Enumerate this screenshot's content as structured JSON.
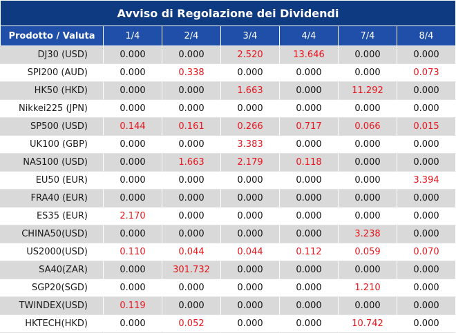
{
  "title": "Avviso di Regolazione dei Dividendi",
  "header": {
    "first_col": "Prodotto / Valuta",
    "dates": [
      "1/4",
      "2/4",
      "3/4",
      "4/4",
      "7/4",
      "8/4"
    ]
  },
  "colors": {
    "title_bg": "#0e3a82",
    "header_bg": "#1f4fa8",
    "shaded_row": "#d9d9d9",
    "highlight_text": "#e8141b"
  },
  "rows": [
    {
      "product": "DJ30 (USD)",
      "values": [
        "0.000",
        "0.000",
        "2.520",
        "13.646",
        "0.000",
        "0.000"
      ]
    },
    {
      "product": "SPI200 (AUD)",
      "values": [
        "0.000",
        "0.338",
        "0.000",
        "0.000",
        "0.000",
        "0.073"
      ]
    },
    {
      "product": "HK50 (HKD)",
      "values": [
        "0.000",
        "0.000",
        "1.663",
        "0.000",
        "11.292",
        "0.000"
      ]
    },
    {
      "product": "Nikkei225 (JPN)",
      "values": [
        "0.000",
        "0.000",
        "0.000",
        "0.000",
        "0.000",
        "0.000"
      ]
    },
    {
      "product": "SP500 (USD)",
      "values": [
        "0.144",
        "0.161",
        "0.266",
        "0.717",
        "0.066",
        "0.015"
      ]
    },
    {
      "product": "UK100 (GBP)",
      "values": [
        "0.000",
        "0.000",
        "3.383",
        "0.000",
        "0.000",
        "0.000"
      ]
    },
    {
      "product": "NAS100 (USD)",
      "values": [
        "0.000",
        "1.663",
        "2.179",
        "0.118",
        "0.000",
        "0.000"
      ]
    },
    {
      "product": "EU50 (EUR)",
      "values": [
        "0.000",
        "0.000",
        "0.000",
        "0.000",
        "0.000",
        "3.394"
      ]
    },
    {
      "product": "FRA40 (EUR)",
      "values": [
        "0.000",
        "0.000",
        "0.000",
        "0.000",
        "0.000",
        "0.000"
      ]
    },
    {
      "product": "ES35 (EUR)",
      "values": [
        "2.170",
        "0.000",
        "0.000",
        "0.000",
        "0.000",
        "0.000"
      ]
    },
    {
      "product": "CHINA50(USD)",
      "values": [
        "0.000",
        "0.000",
        "0.000",
        "0.000",
        "3.238",
        "0.000"
      ]
    },
    {
      "product": "US2000(USD)",
      "values": [
        "0.110",
        "0.044",
        "0.044",
        "0.112",
        "0.059",
        "0.070"
      ]
    },
    {
      "product": "SA40(ZAR)",
      "values": [
        "0.000",
        "301.732",
        "0.000",
        "0.000",
        "0.000",
        "0.000"
      ]
    },
    {
      "product": "SGP20(SGD)",
      "values": [
        "0.000",
        "0.000",
        "0.000",
        "0.000",
        "1.210",
        "0.000"
      ]
    },
    {
      "product": "TWINDEX(USD)",
      "values": [
        "0.119",
        "0.000",
        "0.000",
        "0.000",
        "0.000",
        "0.000"
      ]
    },
    {
      "product": "HKTECH(HKD)",
      "values": [
        "0.000",
        "0.052",
        "0.000",
        "0.000",
        "10.742",
        "0.000"
      ]
    }
  ]
}
